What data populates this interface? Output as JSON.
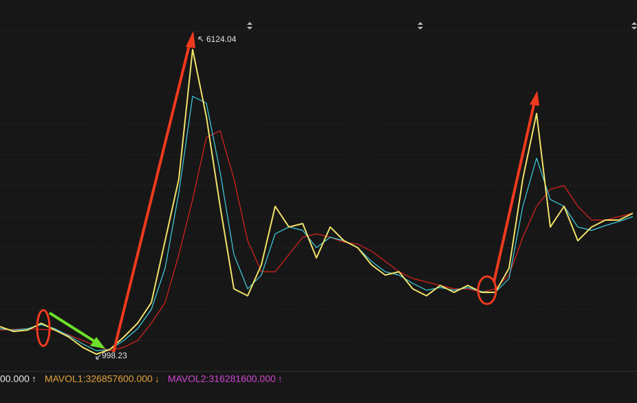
{
  "chart_data": {
    "type": "line",
    "categories": [
      null,
      null,
      null,
      null,
      null,
      null,
      null,
      null,
      null,
      null,
      null,
      null,
      null,
      null,
      null,
      null,
      null,
      null,
      null,
      null,
      null,
      null,
      null,
      null,
      null,
      null,
      null,
      null,
      null,
      null,
      null,
      null,
      null,
      null,
      null,
      null,
      null,
      null,
      null,
      null,
      null,
      null,
      null,
      null,
      null,
      null,
      null
    ],
    "series": [
      {
        "color": "#f2e36a",
        "values": [
          1461,
          1380,
          1403,
          1519,
          1403,
          1287,
          1114,
          998.23,
          1079,
          1287,
          1519,
          1866,
          2907,
          3949,
          6124.04,
          4990,
          3486,
          2097,
          1981,
          2502,
          3486,
          3138,
          3196,
          2618,
          3138,
          2907,
          2791,
          2502,
          2329,
          2386,
          2097,
          1981,
          2155,
          2039,
          2155,
          2039,
          2039,
          2444,
          3949,
          5048,
          3138,
          3486,
          2907,
          3138,
          3254,
          3254,
          3370
        ]
      },
      {
        "color": "#3fd3e3",
        "values": [
          1426,
          1403,
          1426,
          1496,
          1426,
          1310,
          1172,
          1056,
          1079,
          1229,
          1426,
          1750,
          2444,
          3717,
          5337,
          5221,
          4064,
          2676,
          2097,
          2329,
          3023,
          3138,
          3081,
          2791,
          2965,
          2907,
          2791,
          2560,
          2386,
          2329,
          2190,
          2074,
          2120,
          2074,
          2120,
          2051,
          2039,
          2271,
          3486,
          4296,
          3601,
          3486,
          3138,
          3081,
          3162,
          3231,
          3312
        ]
      },
      {
        "color": "#e0231c",
        "values": [
          1403,
          1415,
          1426,
          1415,
          1403,
          1322,
          1229,
          1137,
          1056,
          1114,
          1229,
          1519,
          1866,
          2676,
          3601,
          4643,
          4758,
          3949,
          2907,
          2386,
          2386,
          2676,
          2965,
          3023,
          2965,
          2884,
          2849,
          2734,
          2560,
          2386,
          2271,
          2213,
          2155,
          2097,
          2097,
          2039,
          2097,
          2329,
          2965,
          3486,
          3775,
          3833,
          3486,
          3254,
          3254,
          3312,
          3370
        ]
      }
    ],
    "ylim": [
      709,
      6957
    ],
    "grid": false,
    "indicators": [
      {
        "text": "00.000",
        "arrow": "↑",
        "color": "#e8e8e8"
      },
      {
        "text": "MAVOL1:326857600.000",
        "arrow": "↓",
        "color": "#e3a33b"
      },
      {
        "text": "MAVOL2:316281600.000",
        "arrow": "↑",
        "color": "#d146d3"
      }
    ]
  }
}
